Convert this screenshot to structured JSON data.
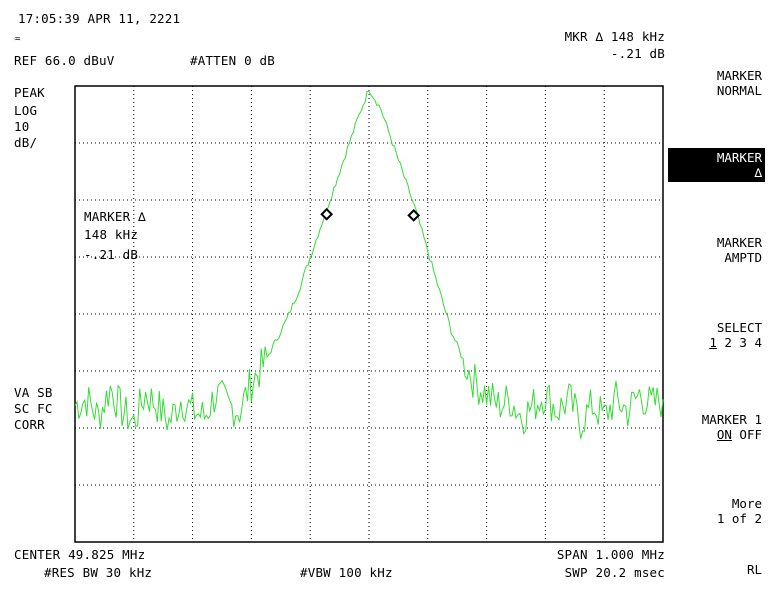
{
  "header": {
    "datetime": "17:05:39 APR 11, 2221",
    "ref_level": "REF 66.0 dBuV",
    "attenuation": "#ATTEN 0 dB",
    "marker_readout_line1": "MKR ∆ 148 kHz",
    "marker_readout_line2": "-.21 dB"
  },
  "left_labels": {
    "scale_line1": "PEAK",
    "scale_line2": "LOG",
    "scale_line3": "10",
    "scale_line4": "dB/",
    "vavg_line1": "VA SB",
    "vavg_line2": "SC FC",
    "vavg_line3": "CORR"
  },
  "marker_annotation": {
    "line1": "MARKER ∆",
    "line2": "148 kHz",
    "line3": "-.21 dB"
  },
  "footer": {
    "center": "CENTER 49.825 MHz",
    "span": "SPAN 1.000 MHz",
    "rbw": "#RES BW 30 kHz",
    "vbw": "#VBW 100 kHz",
    "sweep": "SWP 20.2 msec"
  },
  "softkeys": {
    "marker_normal_l1": "MARKER",
    "marker_normal_l2": "NORMAL",
    "marker_delta_l1": "MARKER",
    "marker_delta_l2": "∆",
    "marker_ampt_l1": "MARKER",
    "marker_ampt_l2": "AMPTD",
    "select_l1": "SELECT",
    "select_opt1": "1",
    "select_rest": " 2 3 4",
    "marker1_l1": "MARKER 1",
    "marker1_on": "ON",
    "marker1_off": " OFF",
    "more_l1": "More",
    "more_l2": "1 of 2",
    "rl": "RL"
  },
  "colors": {
    "trace": "#33dd33",
    "graticule": "#000000",
    "background": "#ffffff"
  },
  "chart_data": {
    "type": "line",
    "x_range_mhz": [
      49.325,
      50.325
    ],
    "y_range_div": [
      -8,
      0
    ],
    "divisions_x": 10,
    "divisions_y": 8,
    "grid": true,
    "series": [
      {
        "points": [
          [
            49.325,
            -5.6
          ],
          [
            49.345,
            -5.5
          ],
          [
            49.365,
            -5.8
          ],
          [
            49.385,
            -5.3
          ],
          [
            49.405,
            -5.7
          ],
          [
            49.425,
            -5.9
          ],
          [
            49.445,
            -5.4
          ],
          [
            49.465,
            -5.6
          ],
          [
            49.485,
            -5.9
          ],
          [
            49.505,
            -5.5
          ],
          [
            49.525,
            -5.7
          ],
          [
            49.545,
            -5.8
          ],
          [
            49.565,
            -5.4
          ],
          [
            49.585,
            -5.6
          ],
          [
            49.605,
            -5.7
          ],
          [
            49.625,
            -5.2
          ],
          [
            49.645,
            -4.9
          ],
          [
            49.665,
            -4.5
          ],
          [
            49.685,
            -4.1
          ],
          [
            49.705,
            -3.6
          ],
          [
            49.725,
            -3.0
          ],
          [
            49.745,
            -2.4
          ],
          [
            49.765,
            -1.8
          ],
          [
            49.785,
            -1.2
          ],
          [
            49.805,
            -0.6
          ],
          [
            49.825,
            -0.05
          ],
          [
            49.845,
            -0.4
          ],
          [
            49.865,
            -1.0
          ],
          [
            49.885,
            -1.6
          ],
          [
            49.905,
            -2.2
          ],
          [
            49.925,
            -2.9
          ],
          [
            49.945,
            -3.6
          ],
          [
            49.965,
            -4.3
          ],
          [
            49.985,
            -4.8
          ],
          [
            50.005,
            -5.2
          ],
          [
            50.025,
            -5.4
          ],
          [
            50.045,
            -5.6
          ],
          [
            50.065,
            -5.5
          ],
          [
            50.085,
            -5.8
          ],
          [
            50.105,
            -5.6
          ],
          [
            50.125,
            -5.4
          ],
          [
            50.145,
            -5.7
          ],
          [
            50.165,
            -5.5
          ],
          [
            50.185,
            -5.9
          ],
          [
            50.205,
            -5.6
          ],
          [
            50.225,
            -5.8
          ],
          [
            50.245,
            -5.5
          ],
          [
            50.265,
            -5.7
          ],
          [
            50.285,
            -5.4
          ],
          [
            50.305,
            -5.6
          ],
          [
            50.325,
            -5.5
          ]
        ]
      }
    ],
    "markers": [
      {
        "x": 49.753,
        "y": -2.25
      },
      {
        "x": 49.901,
        "y": -2.27
      }
    ]
  }
}
